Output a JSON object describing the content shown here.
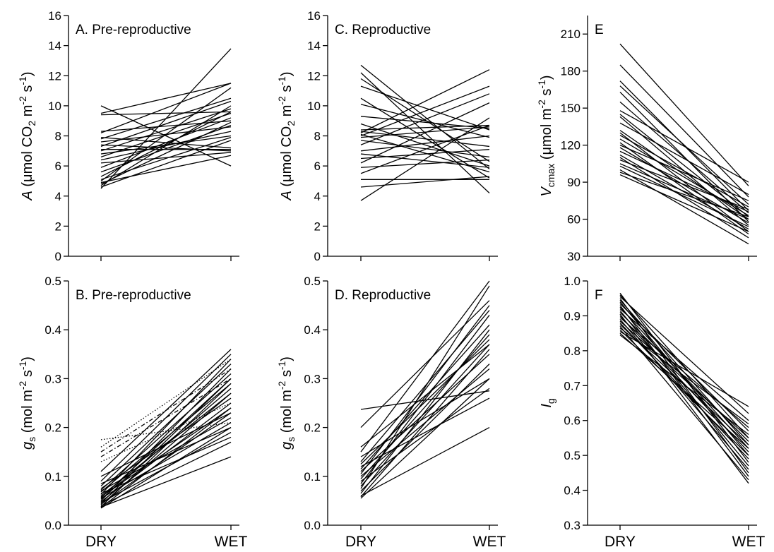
{
  "chart_data": [
    {
      "id": "A",
      "type": "line",
      "title": "A. Pre-reproductive",
      "ylabel": {
        "symbol": "A",
        "text": " (μmol CO",
        "sub": "2",
        "text2": " m",
        "sup1": "-2",
        "text3": " s",
        "sup2": "-1",
        "text4": ")"
      },
      "categories": [
        "DRY",
        "WET"
      ],
      "ylim": [
        0,
        16
      ],
      "yticks": [
        0,
        2,
        4,
        6,
        8,
        10,
        12,
        14,
        16
      ],
      "series": [
        {
          "values": [
            10.0,
            6.0
          ]
        },
        {
          "values": [
            9.5,
            11.5
          ]
        },
        {
          "values": [
            9.4,
            9.6
          ]
        },
        {
          "values": [
            8.3,
            9.0
          ]
        },
        {
          "values": [
            8.2,
            11.5
          ]
        },
        {
          "values": [
            7.9,
            7.2
          ]
        },
        {
          "values": [
            7.8,
            10.5
          ]
        },
        {
          "values": [
            7.6,
            8.6
          ]
        },
        {
          "values": [
            7.4,
            7.0
          ]
        },
        {
          "values": [
            7.3,
            10.3
          ]
        },
        {
          "values": [
            7.1,
            7.1
          ]
        },
        {
          "values": [
            7.0,
            9.8
          ]
        },
        {
          "values": [
            6.8,
            8.0
          ]
        },
        {
          "values": [
            6.6,
            9.5
          ]
        },
        {
          "values": [
            6.4,
            8.3
          ]
        },
        {
          "values": [
            6.2,
            6.9
          ]
        },
        {
          "values": [
            5.9,
            9.2
          ]
        },
        {
          "values": [
            5.6,
            8.7
          ]
        },
        {
          "values": [
            5.3,
            9.6
          ]
        },
        {
          "values": [
            5.1,
            7.9
          ]
        },
        {
          "values": [
            5.0,
            11.2
          ]
        },
        {
          "values": [
            4.9,
            6.7
          ]
        },
        {
          "values": [
            4.8,
            8.9
          ]
        },
        {
          "values": [
            4.7,
            10.0
          ]
        },
        {
          "values": [
            4.6,
            7.7
          ]
        },
        {
          "values": [
            4.5,
            13.8
          ]
        }
      ]
    },
    {
      "id": "B",
      "type": "line",
      "title": "B. Pre-reproductive",
      "ylabel": {
        "symbol": "g",
        "symsub": "s",
        "text": " (mol m",
        "sup1": "-2",
        "text2": " s",
        "sup2": "-1",
        "text3": ")"
      },
      "categories": [
        "DRY",
        "WET"
      ],
      "ylim": [
        0,
        0.5
      ],
      "yticks": [
        "0.0",
        "0.1",
        "0.2",
        "0.3",
        "0.4",
        "0.5"
      ],
      "series": [
        {
          "values": [
            0.175,
            0.21
          ],
          "dash": "dotted"
        },
        {
          "values": [
            0.16,
            0.34
          ],
          "dash": "dotted"
        },
        {
          "values": [
            0.15,
            0.32
          ],
          "dash": "dashdot"
        },
        {
          "values": [
            0.14,
            0.3
          ],
          "dash": "dashdot"
        },
        {
          "values": [
            0.13,
            0.25
          ],
          "dash": "dotted"
        },
        {
          "values": [
            0.11,
            0.36
          ]
        },
        {
          "values": [
            0.1,
            0.23
          ]
        },
        {
          "values": [
            0.09,
            0.35
          ]
        },
        {
          "values": [
            0.085,
            0.2
          ]
        },
        {
          "values": [
            0.08,
            0.33
          ]
        },
        {
          "values": [
            0.075,
            0.26
          ]
        },
        {
          "values": [
            0.072,
            0.31
          ]
        },
        {
          "values": [
            0.07,
            0.22
          ]
        },
        {
          "values": [
            0.068,
            0.29
          ]
        },
        {
          "values": [
            0.065,
            0.18
          ]
        },
        {
          "values": [
            0.063,
            0.34
          ]
        },
        {
          "values": [
            0.06,
            0.27
          ]
        },
        {
          "values": [
            0.058,
            0.24
          ]
        },
        {
          "values": [
            0.056,
            0.3
          ]
        },
        {
          "values": [
            0.055,
            0.21
          ]
        },
        {
          "values": [
            0.053,
            0.28
          ]
        },
        {
          "values": [
            0.05,
            0.32
          ]
        },
        {
          "values": [
            0.048,
            0.25
          ]
        },
        {
          "values": [
            0.046,
            0.19
          ]
        },
        {
          "values": [
            0.045,
            0.3
          ]
        },
        {
          "values": [
            0.043,
            0.23
          ]
        },
        {
          "values": [
            0.042,
            0.27
          ]
        },
        {
          "values": [
            0.04,
            0.17
          ]
        },
        {
          "values": [
            0.038,
            0.29
          ]
        },
        {
          "values": [
            0.037,
            0.14
          ]
        },
        {
          "values": [
            0.036,
            0.24
          ]
        },
        {
          "values": [
            0.035,
            0.2
          ]
        }
      ]
    },
    {
      "id": "C",
      "type": "line",
      "title": "C. Reproductive",
      "ylabel": {
        "symbol": "A",
        "text": " (μmol CO",
        "sub": "2",
        "text2": " m",
        "sup1": "-2",
        "text3": " s",
        "sup2": "-1",
        "text4": ")"
      },
      "categories": [
        "DRY",
        "WET"
      ],
      "ylim": [
        0,
        16
      ],
      "yticks": [
        0,
        2,
        4,
        6,
        8,
        10,
        12,
        14,
        16
      ],
      "series": [
        {
          "values": [
            12.7,
            5.8
          ]
        },
        {
          "values": [
            12.2,
            4.2
          ]
        },
        {
          "values": [
            11.8,
            6.3
          ]
        },
        {
          "values": [
            11.3,
            8.4
          ]
        },
        {
          "values": [
            10.5,
            5.2
          ]
        },
        {
          "values": [
            10.1,
            7.9
          ]
        },
        {
          "values": [
            9.3,
            8.5
          ]
        },
        {
          "values": [
            8.8,
            6.0
          ]
        },
        {
          "values": [
            8.4,
            8.7
          ]
        },
        {
          "values": [
            8.3,
            7.3
          ]
        },
        {
          "values": [
            8.2,
            12.4
          ]
        },
        {
          "values": [
            8.1,
            5.6
          ]
        },
        {
          "values": [
            8.0,
            11.3
          ]
        },
        {
          "values": [
            7.9,
            8.6
          ]
        },
        {
          "values": [
            7.7,
            6.6
          ]
        },
        {
          "values": [
            7.4,
            10.8
          ]
        },
        {
          "values": [
            7.0,
            8.0
          ]
        },
        {
          "values": [
            6.8,
            5.9
          ]
        },
        {
          "values": [
            6.5,
            7.1
          ]
        },
        {
          "values": [
            6.2,
            10.2
          ]
        },
        {
          "values": [
            5.9,
            6.4
          ]
        },
        {
          "values": [
            5.5,
            8.7
          ]
        },
        {
          "values": [
            5.1,
            5.1
          ]
        },
        {
          "values": [
            4.6,
            5.3
          ]
        },
        {
          "values": [
            3.7,
            9.2
          ]
        }
      ]
    },
    {
      "id": "D",
      "type": "line",
      "title": "D. Reproductive",
      "ylabel": {
        "symbol": "g",
        "symsub": "s",
        "text": " (mol m",
        "sup1": "-2",
        "text2": " s",
        "sup2": "-1",
        "text3": ")"
      },
      "categories": [
        "DRY",
        "WET"
      ],
      "ylim": [
        0,
        0.5
      ],
      "yticks": [
        "0.0",
        "0.1",
        "0.2",
        "0.3",
        "0.4",
        "0.5"
      ],
      "series": [
        {
          "values": [
            0.237,
            0.275
          ]
        },
        {
          "values": [
            0.2,
            0.46
          ]
        },
        {
          "values": [
            0.16,
            0.37
          ]
        },
        {
          "values": [
            0.15,
            0.5
          ]
        },
        {
          "values": [
            0.14,
            0.3
          ]
        },
        {
          "values": [
            0.13,
            0.44
          ]
        },
        {
          "values": [
            0.125,
            0.38
          ]
        },
        {
          "values": [
            0.12,
            0.26
          ]
        },
        {
          "values": [
            0.115,
            0.41
          ]
        },
        {
          "values": [
            0.11,
            0.35
          ]
        },
        {
          "values": [
            0.105,
            0.45
          ]
        },
        {
          "values": [
            0.1,
            0.32
          ]
        },
        {
          "values": [
            0.095,
            0.39
          ]
        },
        {
          "values": [
            0.09,
            0.28
          ]
        },
        {
          "values": [
            0.085,
            0.43
          ]
        },
        {
          "values": [
            0.08,
            0.37
          ]
        },
        {
          "values": [
            0.075,
            0.49
          ]
        },
        {
          "values": [
            0.07,
            0.33
          ]
        },
        {
          "values": [
            0.065,
            0.4
          ]
        },
        {
          "values": [
            0.06,
            0.2
          ]
        },
        {
          "values": [
            0.058,
            0.36
          ]
        },
        {
          "values": [
            0.055,
            0.3
          ]
        }
      ]
    },
    {
      "id": "E",
      "type": "line",
      "title": "E",
      "ylabel": {
        "symbol": "V",
        "symsub": "cmax",
        "text": " (μmol m",
        "sup1": "-2",
        "text2": " s",
        "sup2": "-1",
        "text3": ")"
      },
      "categories": [
        "DRY",
        "WET"
      ],
      "ylim": [
        30,
        225
      ],
      "yticks": [
        30,
        60,
        90,
        120,
        150,
        180,
        210
      ],
      "series": [
        {
          "values": [
            202,
            87
          ]
        },
        {
          "values": [
            185,
            78
          ]
        },
        {
          "values": [
            172,
            67
          ]
        },
        {
          "values": [
            168,
            72
          ]
        },
        {
          "values": [
            163,
            58
          ]
        },
        {
          "values": [
            155,
            65
          ]
        },
        {
          "values": [
            148,
            90
          ]
        },
        {
          "values": [
            145,
            62
          ]
        },
        {
          "values": [
            143,
            55
          ]
        },
        {
          "values": [
            138,
            80
          ]
        },
        {
          "values": [
            132,
            60
          ]
        },
        {
          "values": [
            130,
            50
          ]
        },
        {
          "values": [
            128,
            70
          ]
        },
        {
          "values": [
            125,
            63
          ]
        },
        {
          "values": [
            122,
            48
          ]
        },
        {
          "values": [
            120,
            75
          ]
        },
        {
          "values": [
            118,
            57
          ]
        },
        {
          "values": [
            115,
            66
          ]
        },
        {
          "values": [
            112,
            52
          ]
        },
        {
          "values": [
            110,
            45
          ]
        },
        {
          "values": [
            108,
            68
          ]
        },
        {
          "values": [
            105,
            60
          ]
        },
        {
          "values": [
            103,
            54
          ]
        },
        {
          "values": [
            100,
            40
          ]
        },
        {
          "values": [
            98,
            62
          ]
        },
        {
          "values": [
            96,
            50
          ]
        }
      ]
    },
    {
      "id": "F",
      "type": "line",
      "title": "F",
      "ylabel": {
        "symbol": "I",
        "symsub": "g"
      },
      "categories": [
        "DRY",
        "WET"
      ],
      "ylim": [
        0.3,
        1.0
      ],
      "yticks": [
        "0.3",
        "0.4",
        "0.5",
        "0.6",
        "0.7",
        "0.8",
        "0.9",
        "1.0"
      ],
      "series": [
        {
          "values": [
            0.965,
            0.48
          ]
        },
        {
          "values": [
            0.96,
            0.55
          ]
        },
        {
          "values": [
            0.955,
            0.62
          ]
        },
        {
          "values": [
            0.95,
            0.45
          ]
        },
        {
          "values": [
            0.945,
            0.53
          ]
        },
        {
          "values": [
            0.94,
            0.5
          ]
        },
        {
          "values": [
            0.935,
            0.57
          ]
        },
        {
          "values": [
            0.93,
            0.44
          ]
        },
        {
          "values": [
            0.925,
            0.52
          ]
        },
        {
          "values": [
            0.92,
            0.6
          ]
        },
        {
          "values": [
            0.915,
            0.47
          ]
        },
        {
          "values": [
            0.91,
            0.54
          ]
        },
        {
          "values": [
            0.905,
            0.42
          ]
        },
        {
          "values": [
            0.9,
            0.51
          ]
        },
        {
          "values": [
            0.895,
            0.58
          ]
        },
        {
          "values": [
            0.89,
            0.46
          ]
        },
        {
          "values": [
            0.885,
            0.55
          ]
        },
        {
          "values": [
            0.88,
            0.49
          ]
        },
        {
          "values": [
            0.875,
            0.53
          ]
        },
        {
          "values": [
            0.87,
            0.43
          ]
        },
        {
          "values": [
            0.865,
            0.59
          ]
        },
        {
          "values": [
            0.86,
            0.5
          ]
        },
        {
          "values": [
            0.855,
            0.64
          ]
        },
        {
          "values": [
            0.85,
            0.52
          ]
        },
        {
          "values": [
            0.845,
            0.56
          ]
        }
      ]
    }
  ]
}
